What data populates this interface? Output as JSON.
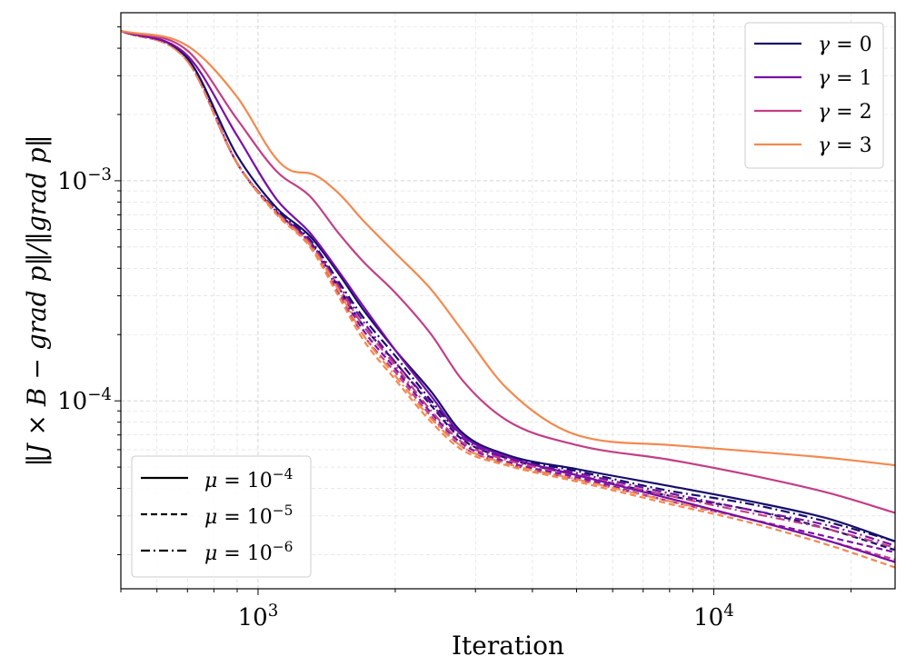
{
  "chart_data": {
    "type": "line",
    "xlabel": "Iteration",
    "ylabel": "‖J × B − grad p‖/‖grad p‖",
    "xscale": "log",
    "yscale": "log",
    "xlim": [
      500,
      25000
    ],
    "ylim": [
      1.4e-05,
      0.0058
    ],
    "grid": true,
    "x_ticks": [
      {
        "value": 1000,
        "base": "10",
        "exp": "3"
      },
      {
        "value": 10000,
        "base": "10",
        "exp": "4"
      }
    ],
    "y_ticks": [
      {
        "value": 0.001,
        "base": "10",
        "exp": "−3"
      },
      {
        "value": 0.0001,
        "base": "10",
        "exp": "−4"
      }
    ],
    "color_legend": {
      "placement": "top-right",
      "entries": [
        {
          "symbol": "γ",
          "eq": " = ",
          "value": "0",
          "color": "#160e6b"
        },
        {
          "symbol": "γ",
          "eq": " = ",
          "value": "1",
          "color": "#7a0ea8"
        },
        {
          "symbol": "γ",
          "eq": " = ",
          "value": "2",
          "color": "#c23f85"
        },
        {
          "symbol": "γ",
          "eq": " = ",
          "value": "3",
          "color": "#f3894f"
        }
      ]
    },
    "style_legend": {
      "placement": "bottom-left",
      "entries": [
        {
          "symbol": "μ",
          "eq": " = ",
          "base": "10",
          "exp": "−4",
          "dash": "solid"
        },
        {
          "symbol": "μ",
          "eq": " = ",
          "base": "10",
          "exp": "−5",
          "dash": "dashed"
        },
        {
          "symbol": "μ",
          "eq": " = ",
          "base": "10",
          "exp": "−6",
          "dash": "dashdot"
        }
      ]
    },
    "series": [
      {
        "name": "γ=0, μ=1e-4",
        "gamma": 0,
        "dash": "solid",
        "color": "#160e6b",
        "x": [
          500,
          700,
          900,
          1100,
          1300,
          1500,
          1700,
          2000,
          2400,
          2800,
          3500,
          5000,
          8000,
          12000,
          18000,
          25000
        ],
        "y": [
          0.0048,
          0.0036,
          0.0013,
          0.00075,
          0.00056,
          0.00038,
          0.00026,
          0.00017,
          0.00011,
          7.2e-05,
          5.7e-05,
          4.9e-05,
          4.1e-05,
          3.5e-05,
          2.9e-05,
          2.3e-05
        ]
      },
      {
        "name": "γ=0, μ=1e-5",
        "gamma": 0,
        "dash": "dashed",
        "color": "#160e6b",
        "x": [
          500,
          700,
          900,
          1100,
          1300,
          1500,
          1700,
          2000,
          2400,
          2800,
          3500,
          5000,
          8000,
          12000,
          18000,
          25000
        ],
        "y": [
          0.0048,
          0.0035,
          0.0012,
          0.00072,
          0.00053,
          0.00033,
          0.00022,
          0.00015,
          9.5e-05,
          6.7e-05,
          5.5e-05,
          4.6e-05,
          3.7e-05,
          3.2e-05,
          2.6e-05,
          2.1e-05
        ]
      },
      {
        "name": "γ=0, μ=1e-6",
        "gamma": 0,
        "dash": "dashdot",
        "color": "#160e6b",
        "x": [
          500,
          700,
          900,
          1100,
          1300,
          1500,
          1700,
          2000,
          2400,
          2800,
          3500,
          5000,
          8000,
          12000,
          18000,
          25000
        ],
        "y": [
          0.0048,
          0.0035,
          0.0012,
          0.00073,
          0.00054,
          0.00035,
          0.00024,
          0.00016,
          0.0001,
          7e-05,
          5.6e-05,
          4.8e-05,
          3.9e-05,
          3.4e-05,
          2.8e-05,
          2.3e-05
        ]
      },
      {
        "name": "γ=1, μ=1e-4",
        "gamma": 1,
        "dash": "solid",
        "color": "#7a0ea8",
        "x": [
          500,
          700,
          900,
          1100,
          1300,
          1500,
          1700,
          2000,
          2400,
          2800,
          3500,
          5000,
          8000,
          12000,
          18000,
          25000
        ],
        "y": [
          0.0048,
          0.0037,
          0.0016,
          0.00082,
          0.00058,
          0.00039,
          0.00027,
          0.00017,
          0.000105,
          7e-05,
          5.6e-05,
          4.6e-05,
          3.6e-05,
          2.9e-05,
          2.3e-05,
          1.85e-05
        ]
      },
      {
        "name": "γ=1, μ=1e-5",
        "gamma": 1,
        "dash": "dashed",
        "color": "#7a0ea8",
        "x": [
          500,
          700,
          900,
          1100,
          1300,
          1500,
          1700,
          2000,
          2400,
          2800,
          3500,
          5000,
          8000,
          12000,
          18000,
          25000
        ],
        "y": [
          0.0048,
          0.0036,
          0.0012,
          0.00072,
          0.00052,
          0.00032,
          0.00021,
          0.00014,
          8.8e-05,
          6.4e-05,
          5.3e-05,
          4.5e-05,
          3.5e-05,
          2.9e-05,
          2.4e-05,
          2.05e-05
        ]
      },
      {
        "name": "γ=1, μ=1e-6",
        "gamma": 1,
        "dash": "dashdot",
        "color": "#7a0ea8",
        "x": [
          500,
          700,
          900,
          1100,
          1300,
          1500,
          1700,
          2000,
          2400,
          2800,
          3500,
          5000,
          8000,
          12000,
          18000,
          25000
        ],
        "y": [
          0.0048,
          0.0036,
          0.0012,
          0.00072,
          0.00053,
          0.00034,
          0.00023,
          0.00015,
          9.7e-05,
          6.8e-05,
          5.5e-05,
          4.7e-05,
          3.8e-05,
          3.2e-05,
          2.7e-05,
          2.2e-05
        ]
      },
      {
        "name": "γ=2, μ=1e-4",
        "gamma": 2,
        "dash": "solid",
        "color": "#c23f85",
        "x": [
          500,
          700,
          900,
          1100,
          1300,
          1500,
          1700,
          2000,
          2400,
          2800,
          3500,
          5000,
          8000,
          12000,
          18000,
          25000
        ],
        "y": [
          0.0048,
          0.0039,
          0.0019,
          0.0011,
          0.00085,
          0.00058,
          0.00043,
          0.00031,
          0.0002,
          0.000125,
          8.2e-05,
          6.3e-05,
          5.4e-05,
          4.6e-05,
          3.8e-05,
          3.1e-05
        ]
      },
      {
        "name": "γ=2, μ=1e-5",
        "gamma": 2,
        "dash": "dashed",
        "color": "#c23f85",
        "x": [
          500,
          700,
          900,
          1100,
          1300,
          1500,
          1700,
          2000,
          2400,
          2800,
          3500,
          5000,
          8000,
          12000,
          18000,
          25000
        ],
        "y": [
          0.0048,
          0.0035,
          0.0012,
          0.00071,
          0.00051,
          0.00031,
          0.0002,
          0.000135,
          8.5e-05,
          6.2e-05,
          5.2e-05,
          4.4e-05,
          3.5e-05,
          2.9e-05,
          2.3e-05,
          1.9e-05
        ]
      },
      {
        "name": "γ=2, μ=1e-6",
        "gamma": 2,
        "dash": "dashdot",
        "color": "#c23f85",
        "x": [
          500,
          700,
          900,
          1100,
          1300,
          1500,
          1700,
          2000,
          2400,
          2800,
          3500,
          5000,
          8000,
          12000,
          18000,
          25000
        ],
        "y": [
          0.0048,
          0.0035,
          0.0012,
          0.00072,
          0.00052,
          0.00033,
          0.00022,
          0.000145,
          9e-05,
          6.5e-05,
          5.4e-05,
          4.6e-05,
          3.7e-05,
          3.1e-05,
          2.6e-05,
          2.15e-05
        ]
      },
      {
        "name": "γ=3, μ=1e-4",
        "gamma": 3,
        "dash": "solid",
        "color": "#f3894f",
        "x": [
          500,
          700,
          900,
          1100,
          1200,
          1300,
          1500,
          1700,
          2000,
          2400,
          2800,
          3500,
          5000,
          8000,
          12000,
          18000,
          25000
        ],
        "y": [
          0.0048,
          0.0041,
          0.0024,
          0.00125,
          0.0011,
          0.00108,
          0.00088,
          0.00066,
          0.00047,
          0.00032,
          0.00021,
          0.000115,
          7e-05,
          6.3e-05,
          5.9e-05,
          5.5e-05,
          5.1e-05
        ]
      },
      {
        "name": "γ=3, μ=1e-5",
        "gamma": 3,
        "dash": "dashed",
        "color": "#f3894f",
        "x": [
          500,
          700,
          900,
          1100,
          1300,
          1500,
          1700,
          2000,
          2400,
          2800,
          3500,
          5000,
          8000,
          12000,
          18000,
          25000
        ],
        "y": [
          0.0048,
          0.0035,
          0.0012,
          0.0007,
          0.0005,
          0.0003,
          0.00019,
          0.000125,
          8e-05,
          6e-05,
          5.1e-05,
          4.3e-05,
          3.4e-05,
          2.8e-05,
          2.2e-05,
          1.75e-05
        ]
      },
      {
        "name": "γ=3, μ=1e-6",
        "gamma": 3,
        "dash": "dashdot",
        "color": "#f3894f",
        "x": [
          500,
          700,
          900,
          1100,
          1300,
          1500,
          1700,
          2000,
          2400,
          2800,
          3500,
          5000,
          8000,
          12000,
          18000,
          25000
        ],
        "y": [
          0.0048,
          0.0035,
          0.0012,
          0.00071,
          0.00051,
          0.00032,
          0.0002,
          0.00013,
          8.3e-05,
          6.2e-05,
          5.2e-05,
          4.4e-05,
          3.5e-05,
          2.9e-05,
          2.3e-05,
          1.85e-05
        ]
      }
    ]
  }
}
